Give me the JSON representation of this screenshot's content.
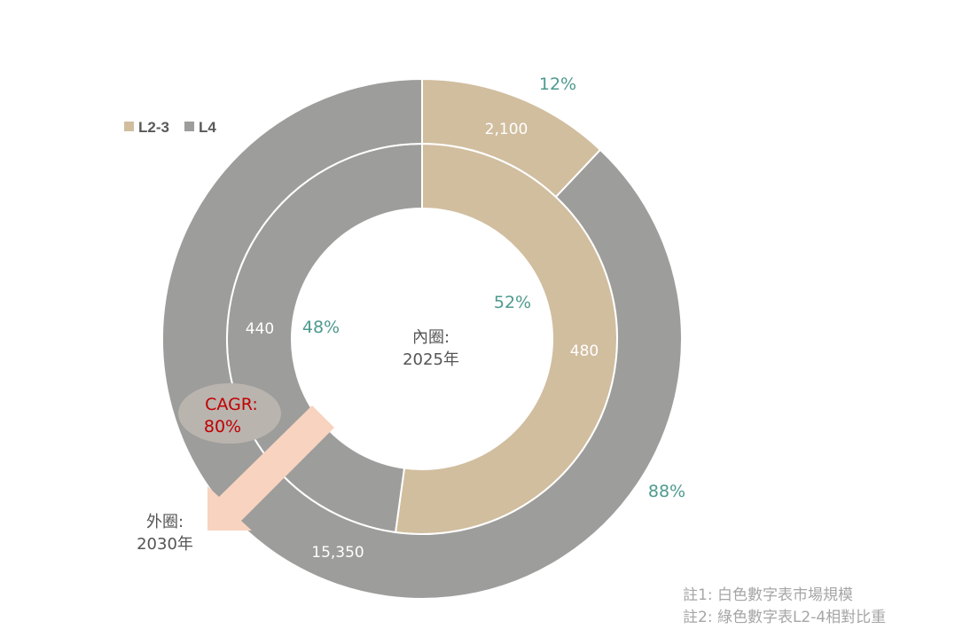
{
  "chart_data": {
    "type": "pie",
    "variant": "nested-donut",
    "legend": {
      "placement": "top-left",
      "entries": [
        "L2-3",
        "L4"
      ]
    },
    "colors": {
      "L2-3": "#D1BE9F",
      "L4": "#9D9D9B",
      "percent_text": "#4E9A8E",
      "value_text": "#FFFFFF",
      "cagr_text": "#C00000",
      "arrow": "#F8D3C0"
    },
    "rings": [
      {
        "ring": "inner",
        "label": "內圈:",
        "year": "2025年",
        "slices": [
          {
            "name": "L2-3",
            "value": 480,
            "value_label": "480",
            "percent": 52,
            "percent_label": "52%"
          },
          {
            "name": "L4",
            "value": 440,
            "value_label": "440",
            "percent": 48,
            "percent_label": "48%"
          }
        ]
      },
      {
        "ring": "outer",
        "label": "外圈:",
        "year": "2030年",
        "slices": [
          {
            "name": "L2-3",
            "value": 2100,
            "value_label": "2,100",
            "percent": 12,
            "percent_label": "12%"
          },
          {
            "name": "L4",
            "value": 15350,
            "value_label": "15,350",
            "percent": 88,
            "percent_label": "88%"
          }
        ]
      }
    ],
    "annotation": {
      "cagr_label": "CAGR:",
      "cagr_value": "80%"
    },
    "notes": [
      "註1: 白色數字表市場規模",
      "註2: 綠色數字表L2-4相對比重"
    ]
  }
}
